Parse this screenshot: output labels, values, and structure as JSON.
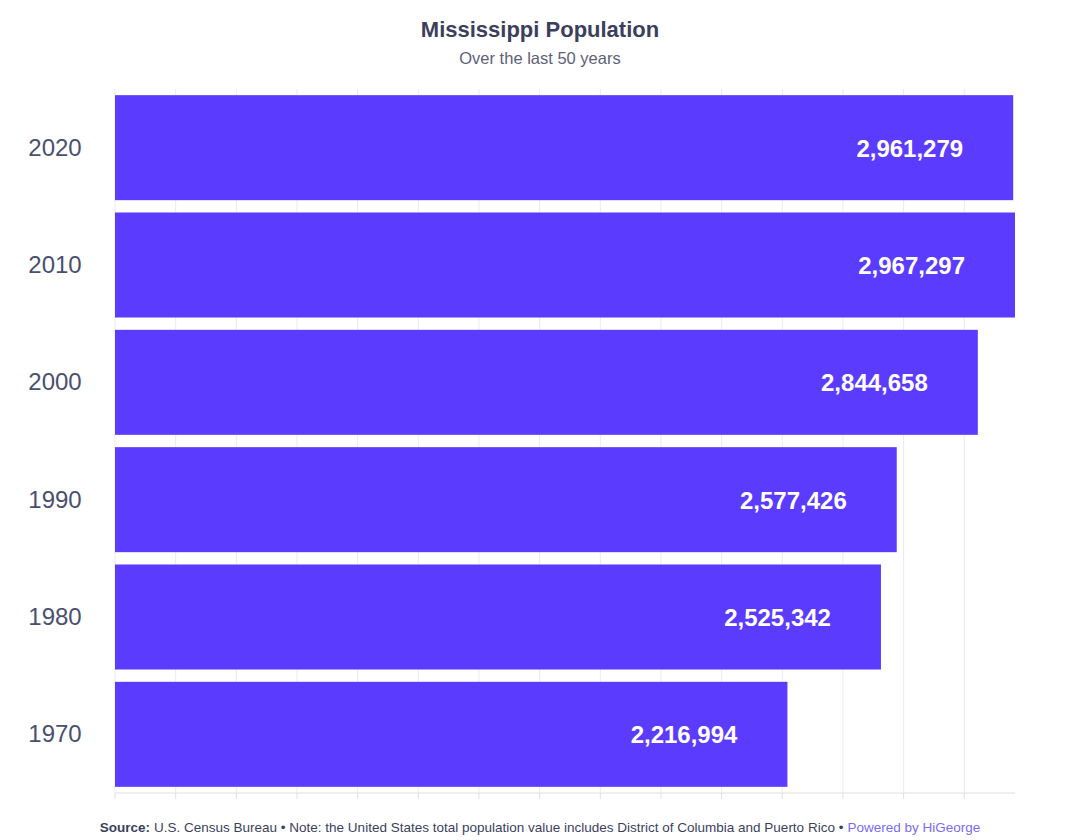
{
  "chart_data": {
    "type": "bar",
    "orientation": "horizontal",
    "title": "Mississippi Population",
    "subtitle": "Over the last 50 years",
    "categories": [
      "2020",
      "2010",
      "2000",
      "1990",
      "1980",
      "1970"
    ],
    "values": [
      2961279,
      2967297,
      2844658,
      2577426,
      2525342,
      2216994
    ],
    "value_labels": [
      "2,961,279",
      "2,967,297",
      "2,844,658",
      "2,577,426",
      "2,525,342",
      "2,216,994"
    ],
    "color": "#5b3cff",
    "xlim": [
      0,
      2967297
    ],
    "xticks": [
      0,
      200000,
      400000,
      600000,
      800000,
      1000000,
      1200000,
      1400000,
      1600000,
      1800000,
      2000000,
      2200000,
      2400000,
      2600000,
      2800000
    ],
    "grid": true,
    "data_labels": true,
    "tick_labels": "y",
    "source_label": "Source:",
    "source": "U.S. Census Bureau • Note: the United States total population value includes District of Columbia and Puerto Rico •",
    "credit": "Powered by HiGeorge"
  }
}
